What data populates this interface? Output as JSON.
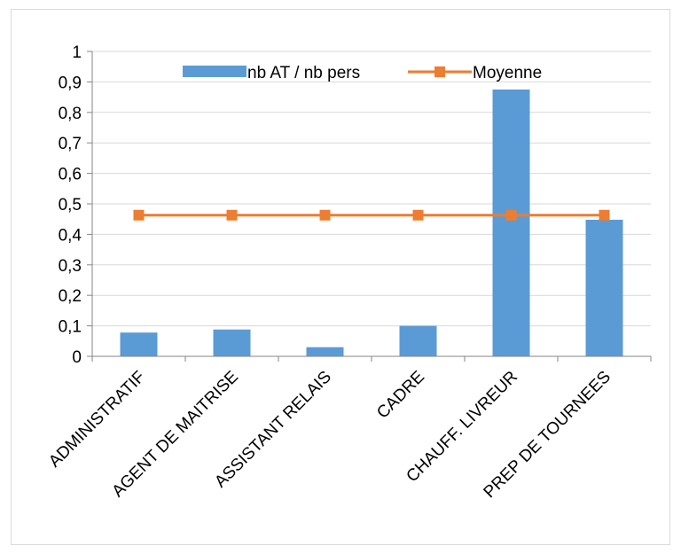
{
  "chart_data": {
    "type": "bar",
    "categories": [
      "ADMINISTRATIF",
      "AGENT DE MAITRISE",
      "ASSISTANT RELAIS",
      "CADRE",
      "CHAUFF. LIVREUR",
      "PREP DE TOURNEES"
    ],
    "series": [
      {
        "name": "nb AT / nb pers",
        "type": "bar",
        "color": "#5B9BD5",
        "values": [
          0.078,
          0.088,
          0.03,
          0.1,
          0.875,
          0.448
        ]
      },
      {
        "name": "Moyenne",
        "type": "line",
        "marker": "square",
        "color": "#ED7D31",
        "values": [
          0.463,
          0.463,
          0.463,
          0.463,
          0.463,
          0.463
        ]
      }
    ],
    "y_ticks": [
      "0",
      "0,1",
      "0,2",
      "0,3",
      "0,4",
      "0,5",
      "0,6",
      "0,7",
      "0,8",
      "0,9",
      "1"
    ],
    "ylim": [
      0,
      1
    ],
    "grid": true,
    "legend_position": "top",
    "title": "",
    "xlabel": "",
    "ylabel": ""
  }
}
